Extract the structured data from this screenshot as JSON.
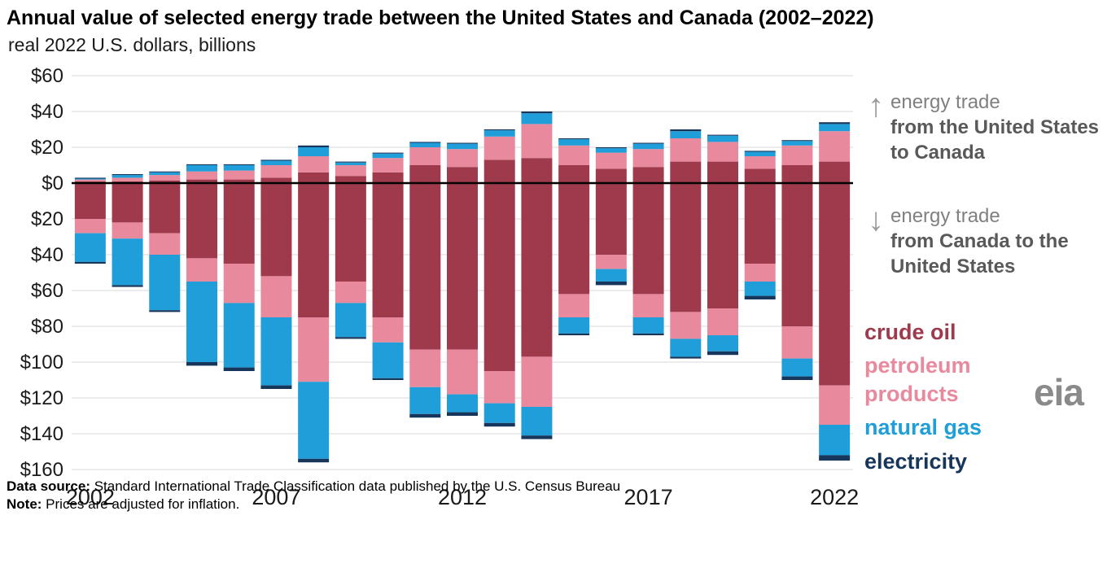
{
  "header": {
    "title": "Annual value of selected energy trade between the United States and Canada (2002–2022)",
    "subtitle": "real 2022 U.S. dollars, billions"
  },
  "annotations": {
    "above_note": {
      "line1": "energy trade",
      "line2": "from the United States to Canada"
    },
    "below_note": {
      "line1": "energy trade",
      "line2": "from Canada to the United States"
    },
    "up_arrow": "↑",
    "down_arrow": "↓"
  },
  "legend": {
    "items": [
      {
        "label": "crude oil",
        "color": "#9e3a4c"
      },
      {
        "label": "petroleum products",
        "color": "#e8899d"
      },
      {
        "label": "natural gas",
        "color": "#1f9ed9"
      },
      {
        "label": "electricity",
        "color": "#17365c"
      }
    ]
  },
  "logo": {
    "text": "eia"
  },
  "footer": {
    "source_label": "Data source:",
    "source_text": " Standard International Trade Classification data published by the U.S. Census Bureau",
    "note_label": "Note:",
    "note_text": " Prices are adjusted for inflation."
  },
  "chart_data": {
    "type": "bar",
    "stacked": true,
    "diverging": true,
    "title": "Annual value of selected energy trade between the United States and Canada (2002–2022)",
    "ylabel": "real 2022 U.S. dollars, billions",
    "years": [
      2002,
      2003,
      2004,
      2005,
      2006,
      2007,
      2008,
      2009,
      2010,
      2011,
      2012,
      2013,
      2014,
      2015,
      2016,
      2017,
      2018,
      2019,
      2020,
      2021,
      2022
    ],
    "components": [
      {
        "name": "crude oil",
        "color": "#9e3a4c"
      },
      {
        "name": "petroleum products",
        "color": "#e8899d"
      },
      {
        "name": "natural gas",
        "color": "#1f9ed9"
      },
      {
        "name": "electricity",
        "color": "#17365c"
      }
    ],
    "series_above": [
      {
        "name": "crude oil",
        "values": [
          1,
          1,
          1.5,
          2,
          2,
          3,
          6,
          4,
          6,
          10,
          9,
          13,
          14,
          10,
          8,
          9,
          12,
          12,
          8,
          10,
          12
        ]
      },
      {
        "name": "petroleum products",
        "values": [
          1,
          2,
          3,
          4.5,
          5,
          7,
          9,
          6,
          8,
          10,
          10,
          13,
          19,
          11,
          9,
          10,
          13,
          11,
          7,
          11,
          17
        ]
      },
      {
        "name": "natural gas",
        "values": [
          0.5,
          1.5,
          1.5,
          3.5,
          3,
          2.5,
          5,
          1.5,
          2.5,
          2.5,
          3,
          3.5,
          6,
          3.5,
          2.5,
          3,
          4,
          3.5,
          2.5,
          2.5,
          4
        ]
      },
      {
        "name": "electricity",
        "values": [
          0.5,
          0.5,
          0.5,
          0.5,
          0.5,
          0.5,
          1,
          0.5,
          0.5,
          0.5,
          0.5,
          0.5,
          1,
          0.5,
          0.5,
          0.5,
          1,
          0.5,
          0.5,
          0.5,
          1
        ]
      }
    ],
    "series_below": [
      {
        "name": "crude oil",
        "values": [
          20,
          22,
          28,
          42,
          45,
          52,
          75,
          55,
          75,
          93,
          93,
          105,
          97,
          62,
          40,
          62,
          72,
          70,
          45,
          80,
          113
        ]
      },
      {
        "name": "petroleum products",
        "values": [
          8,
          9,
          12,
          13,
          22,
          23,
          36,
          12,
          14,
          21,
          25,
          18,
          28,
          13,
          8,
          13,
          15,
          15,
          10,
          18,
          22
        ]
      },
      {
        "name": "natural gas",
        "values": [
          16,
          26,
          31,
          45,
          36,
          38,
          43,
          19,
          20,
          15,
          10,
          11,
          16,
          9,
          7,
          9,
          10,
          9,
          8,
          10,
          17
        ]
      },
      {
        "name": "electricity",
        "values": [
          1,
          1,
          1,
          2,
          2,
          2,
          2,
          1,
          1,
          2,
          2,
          2,
          2,
          1,
          2,
          1,
          1,
          2,
          2,
          2,
          3
        ]
      }
    ],
    "yticks": [
      60,
      40,
      20,
      0,
      -20,
      -40,
      -60,
      -80,
      -100,
      -120,
      -140,
      -160
    ],
    "ytick_labels": [
      "$60",
      "$40",
      "$20",
      "$0",
      "$20",
      "$40",
      "$60",
      "$80",
      "$100",
      "$120",
      "$140",
      "$160"
    ],
    "xticks": [
      2002,
      2007,
      2012,
      2017,
      2022
    ],
    "ylim": [
      -160,
      60
    ],
    "grid": true,
    "zero_line_color": "#000000",
    "grid_color": "#d9d9d9"
  }
}
